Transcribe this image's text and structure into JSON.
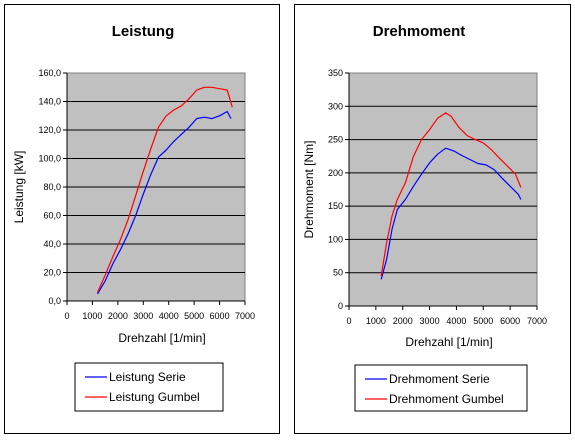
{
  "chart_data": [
    {
      "type": "line",
      "title": "Leistung",
      "xlabel": "Drehzahl [1/min]",
      "ylabel": "Leistung [kW]",
      "xlim": [
        0,
        7000
      ],
      "ylim": [
        0,
        160
      ],
      "x_ticks": [
        "0",
        "1000",
        "2000",
        "3000",
        "4000",
        "5000",
        "6000",
        "7000"
      ],
      "y_ticks": [
        "0,0",
        "20,0",
        "40,0",
        "60,0",
        "80,0",
        "100,0",
        "120,0",
        "140,0",
        "160,0"
      ],
      "grid": true,
      "legend_position": "below",
      "colors": {
        "plot_bg": "#c0c0c0",
        "series": [
          "#0000ff",
          "#ff0000"
        ]
      },
      "series": [
        {
          "name": "Leistung Serie",
          "x": [
            1200,
            1500,
            1800,
            2100,
            2400,
            2700,
            3000,
            3300,
            3600,
            3900,
            4200,
            4500,
            4800,
            5100,
            5400,
            5700,
            6000,
            6300,
            6450
          ],
          "y": [
            5,
            14,
            26,
            36,
            47,
            60,
            75,
            89,
            101,
            106,
            112,
            117,
            122,
            128,
            129,
            128,
            130,
            133,
            128
          ]
        },
        {
          "name": "Leistung Gumbel",
          "x": [
            1200,
            1500,
            1800,
            2100,
            2400,
            2700,
            3000,
            3300,
            3600,
            3900,
            4200,
            4500,
            4800,
            5100,
            5400,
            5700,
            6000,
            6300,
            6500
          ],
          "y": [
            6,
            18,
            31,
            43,
            57,
            74,
            91,
            107,
            122,
            130,
            134,
            137,
            142,
            148,
            150,
            150,
            149,
            148,
            136
          ]
        }
      ]
    },
    {
      "type": "line",
      "title": "Drehmoment",
      "xlabel": "Drehzahl [1/min]",
      "ylabel": "Drehmoment [Nm]",
      "xlim": [
        0,
        7000
      ],
      "ylim": [
        0,
        350
      ],
      "x_ticks": [
        "0",
        "1000",
        "2000",
        "3000",
        "4000",
        "5000",
        "6000",
        "7000"
      ],
      "y_ticks": [
        "0",
        "50",
        "100",
        "150",
        "200",
        "250",
        "300",
        "350"
      ],
      "grid": true,
      "legend_position": "below",
      "colors": {
        "plot_bg": "#c0c0c0",
        "series": [
          "#0000ff",
          "#ff0000"
        ]
      },
      "series": [
        {
          "name": "Drehmoment Serie",
          "x": [
            1200,
            1400,
            1600,
            1800,
            2100,
            2400,
            2700,
            3000,
            3300,
            3600,
            3900,
            4200,
            4500,
            4800,
            5100,
            5400,
            5700,
            6000,
            6300,
            6400
          ],
          "y": [
            40,
            70,
            115,
            145,
            160,
            180,
            198,
            215,
            228,
            237,
            233,
            226,
            220,
            214,
            212,
            205,
            192,
            180,
            168,
            160
          ]
        },
        {
          "name": "Drehmoment Gumbel",
          "x": [
            1200,
            1400,
            1600,
            1800,
            2100,
            2400,
            2700,
            3000,
            3300,
            3600,
            3800,
            4100,
            4400,
            4700,
            5000,
            5300,
            5600,
            5900,
            6200,
            6400
          ],
          "y": [
            45,
            95,
            135,
            160,
            185,
            225,
            250,
            265,
            282,
            290,
            285,
            268,
            256,
            250,
            245,
            235,
            222,
            210,
            198,
            178
          ]
        }
      ]
    }
  ]
}
